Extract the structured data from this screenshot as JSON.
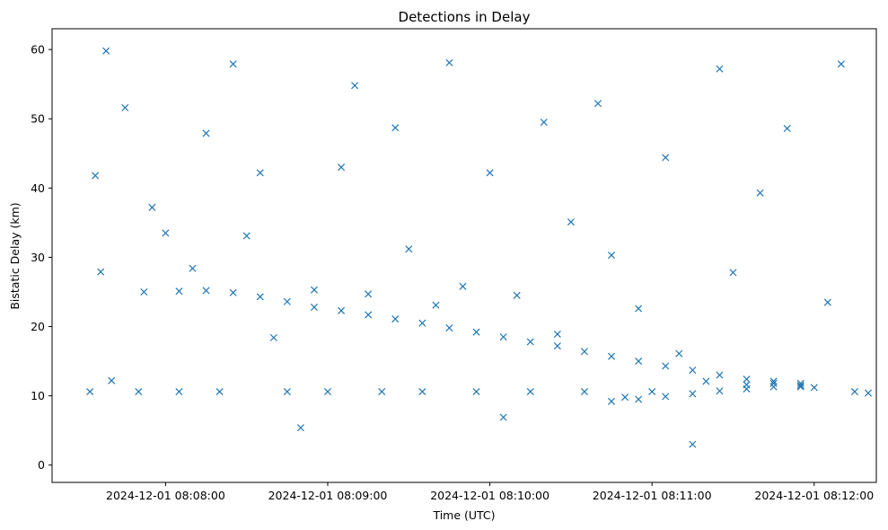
{
  "chart_data": {
    "type": "scatter",
    "title": "Detections in Delay",
    "xlabel": "Time (UTC)",
    "ylabel": "Bistatic Delay (km)",
    "marker": "x",
    "color": "#1f77b4",
    "grid": false,
    "xlim": [
      "2024-12-01 08:07:18",
      "2024-12-01 08:12:23"
    ],
    "ylim": [
      -2.5,
      63
    ],
    "xticks": [
      "2024-12-01 08:08:00",
      "2024-12-01 08:09:00",
      "2024-12-01 08:10:00",
      "2024-12-01 08:11:00",
      "2024-12-01 08:12:00"
    ],
    "yticks": [
      0,
      10,
      20,
      30,
      40,
      50,
      60
    ],
    "series": [
      {
        "x": [
          "2024-12-01 08:07:32",
          "2024-12-01 08:07:34",
          "2024-12-01 08:07:36",
          "2024-12-01 08:07:38",
          "2024-12-01 08:07:40",
          "2024-12-01 08:07:45",
          "2024-12-01 08:07:50",
          "2024-12-01 08:07:55",
          "2024-12-01 08:08:00",
          "2024-12-01 08:08:05",
          "2024-12-01 08:08:10",
          "2024-12-01 08:08:15",
          "2024-12-01 08:08:20",
          "2024-12-01 08:08:25",
          "2024-12-01 08:08:30",
          "2024-12-01 08:08:35",
          "2024-12-01 08:08:40",
          "2024-12-01 08:08:45",
          "2024-12-01 08:08:50",
          "2024-12-01 08:08:55",
          "2024-12-01 08:09:00",
          "2024-12-01 08:09:05",
          "2024-12-01 08:09:10",
          "2024-12-01 08:09:15",
          "2024-12-01 08:09:20",
          "2024-12-01 08:09:25",
          "2024-12-01 08:09:30",
          "2024-12-01 08:09:35",
          "2024-12-01 08:09:40",
          "2024-12-01 08:09:45",
          "2024-12-01 08:09:50",
          "2024-12-01 08:09:55",
          "2024-12-01 08:10:00",
          "2024-12-01 08:10:05",
          "2024-12-01 08:10:10",
          "2024-12-01 08:10:15",
          "2024-12-01 08:10:20",
          "2024-12-01 08:10:25",
          "2024-12-01 08:10:30",
          "2024-12-01 08:10:35",
          "2024-12-01 08:10:40",
          "2024-12-01 08:10:45",
          "2024-12-01 08:10:50",
          "2024-12-01 08:10:55",
          "2024-12-01 08:11:00",
          "2024-12-01 08:11:05",
          "2024-12-01 08:11:10",
          "2024-12-01 08:11:15",
          "2024-12-01 08:11:20",
          "2024-12-01 08:11:25",
          "2024-12-01 08:11:30",
          "2024-12-01 08:11:35",
          "2024-12-01 08:11:40",
          "2024-12-01 08:11:45",
          "2024-12-01 08:11:50",
          "2024-12-01 08:11:55",
          "2024-12-01 08:12:00",
          "2024-12-01 08:12:05",
          "2024-12-01 08:12:10",
          "2024-12-01 08:12:15",
          "2024-12-01 08:12:20"
        ],
        "y": [
          10.6,
          41.8,
          27.9,
          59.8,
          12.2,
          51.6,
          10.6,
          37.2,
          33.5,
          10.6,
          28.4,
          47.9,
          10.6,
          57.9,
          33.1,
          42.2,
          18.4,
          10.6,
          5.4,
          25.3,
          10.6,
          43.0,
          54.8,
          24.7,
          10.6,
          48.7,
          31.2,
          10.6,
          23.1,
          58.1,
          25.8,
          10.6,
          42.2,
          6.9,
          24.5,
          10.6,
          49.5,
          18.9,
          35.1,
          10.6,
          52.2,
          30.3,
          9.8,
          22.6,
          10.6,
          44.4,
          16.1,
          3.0,
          12.1,
          57.2,
          27.8,
          11.6,
          39.3,
          12.1,
          48.6,
          11.8,
          11.2,
          23.5,
          57.9,
          10.6,
          10.4
        ]
      },
      {
        "x": [
          "2024-12-01 08:07:52",
          "2024-12-01 08:08:05",
          "2024-12-01 08:08:15",
          "2024-12-01 08:08:25",
          "2024-12-01 08:08:35",
          "2024-12-01 08:08:45",
          "2024-12-01 08:08:55",
          "2024-12-01 08:09:05",
          "2024-12-01 08:09:15",
          "2024-12-01 08:09:25",
          "2024-12-01 08:09:35",
          "2024-12-01 08:09:45",
          "2024-12-01 08:09:55",
          "2024-12-01 08:10:05",
          "2024-12-01 08:10:15",
          "2024-12-01 08:10:25",
          "2024-12-01 08:10:35",
          "2024-12-01 08:10:45",
          "2024-12-01 08:10:55",
          "2024-12-01 08:11:05",
          "2024-12-01 08:11:15",
          "2024-12-01 08:11:25",
          "2024-12-01 08:11:35",
          "2024-12-01 08:11:45",
          "2024-12-01 08:11:55"
        ],
        "y": [
          25.0,
          25.1,
          25.2,
          24.9,
          24.3,
          23.6,
          22.8,
          22.3,
          21.7,
          21.1,
          20.5,
          19.8,
          19.2,
          18.5,
          17.8,
          17.2,
          16.4,
          15.7,
          15.0,
          14.3,
          13.7,
          13.0,
          12.4,
          11.8,
          11.3
        ]
      },
      {
        "x": [
          "2024-12-01 08:10:45",
          "2024-12-01 08:10:55",
          "2024-12-01 08:11:05",
          "2024-12-01 08:11:15",
          "2024-12-01 08:11:25",
          "2024-12-01 08:11:35",
          "2024-12-01 08:11:45",
          "2024-12-01 08:11:55"
        ],
        "y": [
          9.2,
          9.5,
          9.9,
          10.3,
          10.7,
          11.0,
          11.3,
          11.5
        ]
      }
    ]
  }
}
